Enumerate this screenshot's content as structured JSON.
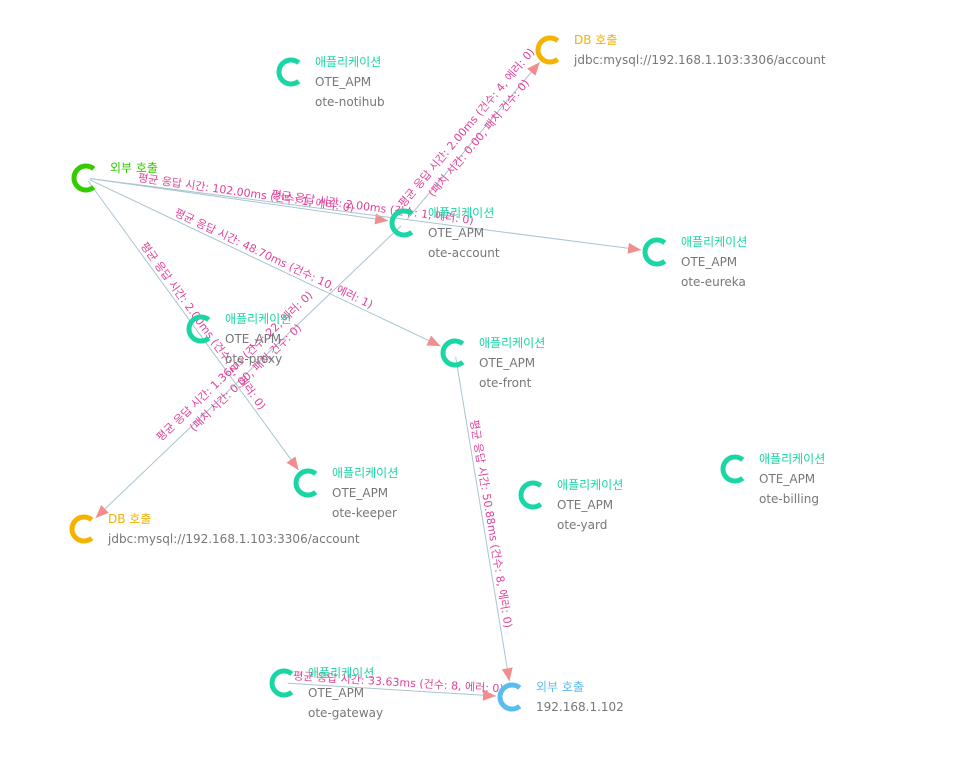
{
  "colors": {
    "application": "#19d6a4",
    "db": "#f5b200",
    "external": "#5cbcf2",
    "external_source": "#33cc00",
    "edge_label": "#e0409a",
    "edge_line": "#a9c4d2",
    "arrow": "#f28d8d"
  },
  "nodes": [
    {
      "id": "notihub",
      "kind": "application",
      "icon": "application-ring-icon",
      "type": "애플리케이션",
      "group": "OTE_APM",
      "name": "ote-notihub"
    },
    {
      "id": "db_top",
      "kind": "db",
      "icon": "db-ring-icon",
      "type": "DB 호출",
      "name": "jdbc:mysql://192.168.1.103:3306/account"
    },
    {
      "id": "external_source",
      "kind": "external_source",
      "icon": "external-source-ring-icon",
      "type": "외부 호출"
    },
    {
      "id": "account",
      "kind": "application",
      "icon": "application-ring-icon",
      "type": "애플리케이션",
      "group": "OTE_APM",
      "name": "ote-account"
    },
    {
      "id": "eureka",
      "kind": "application",
      "icon": "application-ring-icon",
      "type": "애플리케이션",
      "group": "OTE_APM",
      "name": "ote-eureka"
    },
    {
      "id": "proxy",
      "kind": "application",
      "icon": "application-ring-icon",
      "type": "애플리케이션",
      "group": "OTE_APM",
      "name": "ote-proxy"
    },
    {
      "id": "front",
      "kind": "application",
      "icon": "application-ring-icon",
      "type": "애플리케이션",
      "group": "OTE_APM",
      "name": "ote-front"
    },
    {
      "id": "billing",
      "kind": "application",
      "icon": "application-ring-icon",
      "type": "애플리케이션",
      "group": "OTE_APM",
      "name": "ote-billing"
    },
    {
      "id": "keeper",
      "kind": "application",
      "icon": "application-ring-icon",
      "type": "애플리케이션",
      "group": "OTE_APM",
      "name": "ote-keeper"
    },
    {
      "id": "yard",
      "kind": "application",
      "icon": "application-ring-icon",
      "type": "애플리케이션",
      "group": "OTE_APM",
      "name": "ote-yard"
    },
    {
      "id": "db_bottom",
      "kind": "db",
      "icon": "db-ring-icon",
      "type": "DB 호출",
      "name": "jdbc:mysql://192.168.1.103:3306/account"
    },
    {
      "id": "gateway",
      "kind": "application",
      "icon": "application-ring-icon",
      "type": "애플리케이션",
      "group": "OTE_APM",
      "name": "ote-gateway"
    },
    {
      "id": "external_target",
      "kind": "external",
      "icon": "external-ring-icon",
      "type": "외부 호출",
      "name": "192.168.1.102"
    }
  ],
  "edges": [
    {
      "from": "external_source",
      "to": "account",
      "label": "평균 응답 시간: 102.00ms (건수: 1, 에러: 0)"
    },
    {
      "from": "external_source",
      "to": "eureka",
      "label": "평균 응답 시간: 2.00ms (건수: 1, 에러: 0)"
    },
    {
      "from": "external_source",
      "to": "front",
      "label": "평균 응답 시간: 48.70ms (건수: 10, 에러: 1)"
    },
    {
      "from": "external_source",
      "to": "keeper",
      "label": "평균 응답 시간: 2.00ms (건수: 2, 에러: 0)"
    },
    {
      "from": "account",
      "to": "db_top",
      "label": "평균 응답 시간: 2.00ms (건수: 4, 에러: 0)",
      "label2": "(패치 시간: 0.00, 패치 건수: 0)"
    },
    {
      "from": "account",
      "to": "db_bottom",
      "label": "평균 응답 시간: 1.36ms (건수: 22, 에러: 0)",
      "label2": "(패치 시간: 0.00, 패치 건수: 0)"
    },
    {
      "from": "front",
      "to": "external_target",
      "label": "평균 응답 시간: 50.88ms (건수: 8, 에러: 0)"
    },
    {
      "from": "gateway",
      "to": "external_target",
      "label": "평균 응답 시간: 33.63ms (건수: 8, 에러: 0)"
    }
  ]
}
